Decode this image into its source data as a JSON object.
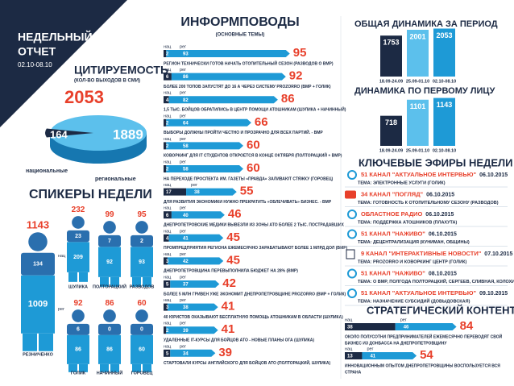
{
  "header": {
    "title_line1": "НЕДЕЛЬНЫЙ",
    "title_line2": "ОТЧЕТ",
    "period": "02.10-08.10"
  },
  "labels": {
    "national_short": "нац",
    "regional_short": "рег"
  },
  "citations": {
    "title": "ЦИТИРУЕМОСТЬ",
    "subtitle": "(КОЛ-ВО ВЫХОДОВ В СМИ)",
    "total": 2053,
    "national": 164,
    "regional": 1889,
    "national_label": "национальные",
    "regional_label": "региональные"
  },
  "speakers": {
    "title": "СПИКЕРЫ НЕДЕЛИ",
    "items": [
      {
        "name": "РЕЗНИЧЕНКО",
        "total": 1143,
        "national": 134,
        "regional": 1009
      },
      {
        "name": "ШУЛИКА",
        "total": 232,
        "national": 23,
        "regional": 209
      },
      {
        "name": "ПОЛТОРАЦКИЙ",
        "total": 99,
        "national": 7,
        "regional": 92
      },
      {
        "name": "РАЗВОДОВ",
        "total": 95,
        "national": 2,
        "regional": 93
      },
      {
        "name": "ГОЛИК",
        "total": 92,
        "national": 6,
        "regional": 86
      },
      {
        "name": "НАЧИННЫЙ",
        "total": 86,
        "national": 0,
        "regional": 86
      },
      {
        "name": "ГОРОВЕЦ",
        "total": 60,
        "national": 0,
        "regional": 60
      }
    ]
  },
  "topics": {
    "title": "ИНФОРМПОВОДЫ",
    "subtitle": "(ОСНОВНЫЕ ТЕМЫ)",
    "items": [
      {
        "national": 2,
        "regional": 93,
        "total": 95,
        "text": "РЕГИОН ТЕХНИЧЕСКИ ГОТОВ НАЧАТЬ ОТОПИТЕЛЬНЫЙ СЕЗОН (РАЗВОДОВ О ВМР)"
      },
      {
        "national": 6,
        "regional": 86,
        "total": 92,
        "text": "БОЛЕЕ 200 ТОПОВ ЗАПУСТЯТ ДО 16 А ЧЕРЕЗ СИСТЕМУ PROZORRO (ВМР + ГОЛИК)"
      },
      {
        "national": 4,
        "regional": 82,
        "total": 86,
        "text": "1,5 ТЫС. БОЙЦОВ ОБРАТИЛИСЬ В ЦЕНТР ПОМОЩИ АТОШНИКАМ (ШУЛИКА + НАЧИННЫЙ)"
      },
      {
        "national": 2,
        "regional": 64,
        "total": 66,
        "text": "ВЫБОРЫ ДОЛЖНЫ ПРОЙТИ ЧЕСТНО И ПРОЗРАЧНО ДЛЯ ВСЕХ ПАРТИЙ. - ВМР"
      },
      {
        "national": 2,
        "regional": 58,
        "total": 60,
        "text": "КОВОРКИНГ ДЛЯ IT СТУДЕНТОВ ОТКРОЕТСЯ В КОНЦЕ ОКТЯБРЯ (ПОЛТОРАЦКИЙ + ВМР)"
      },
      {
        "national": 2,
        "regional": 58,
        "total": 60,
        "text": "НА ПЕРЕХОДЕ ПРОСПЕКТА ИМ. ГАЗЕТЫ «ПРАВДА» ЗАЛИВАЮТ СТЯЖКУ (ГОРОВЕЦ)"
      },
      {
        "national": 17,
        "regional": 38,
        "total": 55,
        "text": "ДЛЯ РАЗВИТИЯ ЭКОНОМИКИ НУЖНО ПРЕКРАТИТЬ «ОБЛЕЧИВАТЬ» БИЗНЕС. - ВМР"
      },
      {
        "national": 6,
        "regional": 40,
        "total": 46,
        "text": "ДНЕПРОПЕТРОВСКИЕ МЕДИКИ ВЫВЕЗЛИ ИЗ ЗОНЫ АТО БОЛЕЕ 2 ТЫС. ПОСТРАДАВШИХ"
      },
      {
        "national": 4,
        "regional": 41,
        "total": 45,
        "text": "ПРОМПРЕДПРИЯТИЯ РЕГИОНА ЕЖЕМЕСЯЧНО ЗАРАБАТЫВАЮТ БОЛЕЕ 1 МЛРД ДОЛ (ВМР)"
      },
      {
        "national": 3,
        "regional": 42,
        "total": 45,
        "text": "ДНЕПРОПЕТРОВЩИНА ПЕРЕВЫПОЛНИЛА БЮДЖЕТ НА 28% (ВМР)"
      },
      {
        "national": 5,
        "regional": 37,
        "total": 42,
        "text": "БОЛЕЕ 5 МЛН ГРИВЕН УЖЕ ЭКОНОМИТ ДНЕПРОПЕТРОВЩИНЕ PROZORRO (ВМР + ГОЛИК)"
      },
      {
        "national": 3,
        "regional": 38,
        "total": 41,
        "text": "40 ЮРИСТОВ ОКАЗЫВАЮТ БЕСПЛАТНУЮ ПОМОЩЬ АТОШНИКАМ В ОБЛАСТИ (ШУЛИКА)"
      },
      {
        "national": 2,
        "regional": 39,
        "total": 41,
        "text": "УДАЛЕННЫЕ IT-КУРСЫ ДЛЯ БОЙЦОВ АТО - НОВЫЕ ПЛАНЫ ОГА (ШУЛИКА)"
      },
      {
        "national": 5,
        "regional": 34,
        "total": 39,
        "text": "СТАРТОВАЛИ КУРСЫ АНГЛИЙСКОГО ДЛЯ БОЙЦОВ АТО (ПОЛТОРАЦКИЙ, ШУЛИКА)"
      }
    ]
  },
  "dynamics": {
    "periods": [
      "18.09-24.09",
      "25.09-01.10",
      "02.10-08.10"
    ],
    "total": {
      "title": "ОБЩАЯ ДИНАМИКА ЗА ПЕРИОД",
      "values": [
        1753,
        2001,
        2053
      ]
    },
    "first_person": {
      "title": "ДИНАМИКА ПО ПЕРВОМУ ЛИЦУ",
      "values": [
        718,
        1101,
        1143
      ]
    }
  },
  "broadcasts": {
    "title": "КЛЮЧЕВЫЕ ЭФИРЫ НЕДЕЛИ",
    "items": [
      {
        "channel": "51 КАНАЛ \"АКТУАЛЬНОЕ ИНТЕРВЬЮ\"",
        "date": "06.10.2015",
        "theme": "ТЕМА: ЭЛЕКТРОННЫЕ УСЛУГИ (ГОЛИК)"
      },
      {
        "channel": "34 КАНАЛ \"ПОГЛЯД\"",
        "date": "06.10.2015",
        "theme": "ТЕМА: ГОТОВНОСТЬ К ОТОПИТЕЛЬНОМУ СЕЗОНУ (РАЗВОДОВ)"
      },
      {
        "channel": "ОБЛАСТНОЕ РАДИО",
        "date": "06.10.2015",
        "theme": "ТЕМА: ПОДДЕРЖКА АТОШНИКОВ (ПЛАХУТА)"
      },
      {
        "channel": "51 КАНАЛ \"НАЖИВО\"",
        "date": "06.10.2015",
        "theme": "ТЕМА: ДЕЦЕНТРАЛИЗАЦИЯ (КУНИМАН, ОБЩИНЫ)"
      },
      {
        "channel": "9 КАНАЛ \"ИНТЕРАКТИВНЫЕ НОВОСТИ\"",
        "date": "07.10.2015",
        "theme": "ТЕМА: PROZORRO И КОВОРКИНГ ЦЕНТР (ГОЛИК)"
      },
      {
        "channel": "51 КАНАЛ \"НАЖИВО\"",
        "date": "08.10.2015",
        "theme": "ТЕМА: О ВМР, ПОЛГОДА ПОЛТОРАЦКИЙ, СЕРГЕЕВ, СЛИВНАЯ, КОЛОХИНА"
      },
      {
        "channel": "51 КАНАЛ \"АКТУАЛЬНОЕ ИНТЕРВЬЮ\"",
        "date": "09.10.2015",
        "theme": "ТЕМА: НАЗНАЧЕНИЕ СУБСИДИЙ (ДОВЫДОВСКАЯ)"
      }
    ]
  },
  "strategic": {
    "title": "СТРАТЕГИЧЕСКИЙ КОНТЕНТ",
    "items": [
      {
        "national": 38,
        "regional": 46,
        "total": 84,
        "text_lines": [
          "ОКОЛО ПОЛУСОТНИ ПРЕДПРИНИМАТЕЛЕЙ ЕЖЕМЕСЯЧНО ПЕРЕВОДЯТ СВОЙ",
          "БИЗНЕС ИЗ ДОНБАССА НА ДНЕПРОПЕТРОВЩИНУ"
        ]
      },
      {
        "national": 13,
        "regional": 41,
        "total": 54,
        "text_lines": [
          "ИННОВАЦИОННЫМ ОПЫТОМ ДНЕПРОПЕТРОВЩИНЫ ВОСПОЛЬЗУЕТСЯ ВСЯ",
          "СТРАНА"
        ]
      }
    ]
  }
}
